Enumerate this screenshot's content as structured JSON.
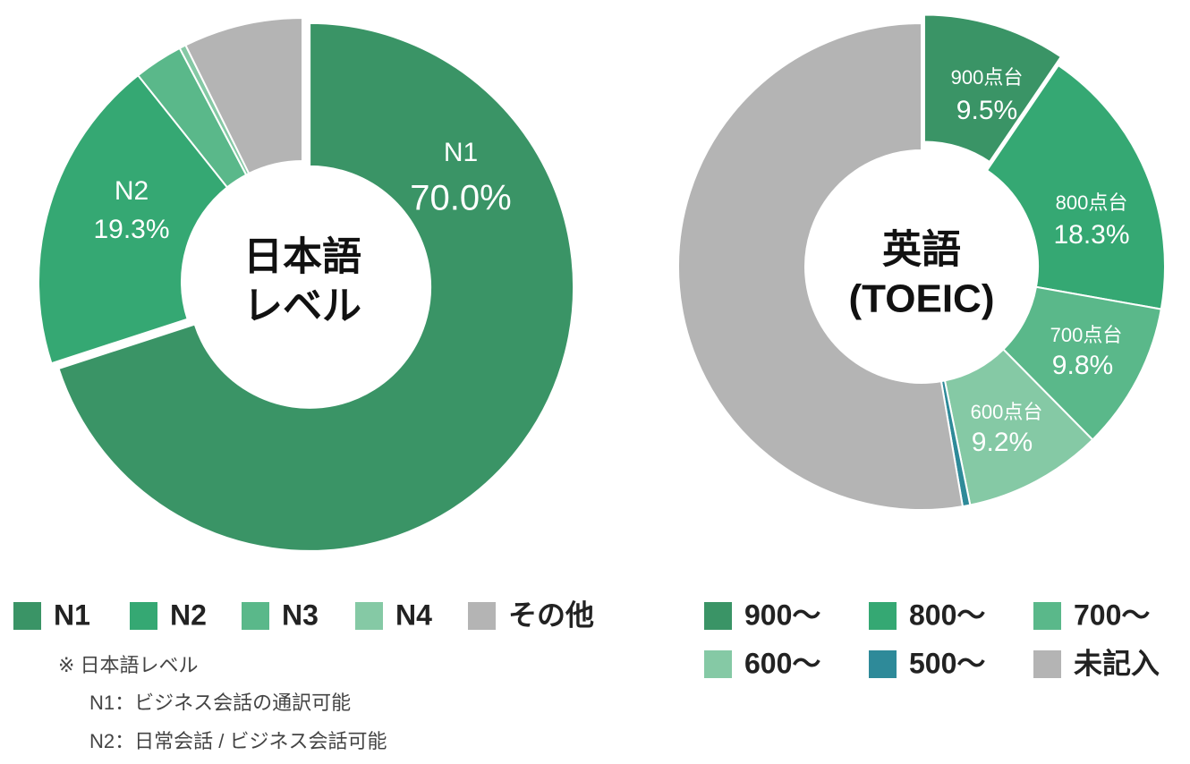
{
  "chart_data": [
    {
      "type": "donut",
      "center_label": [
        "日本語",
        "レベル"
      ],
      "categories": [
        "N1",
        "N2",
        "N3",
        "N4",
        "その他"
      ],
      "values": [
        70.0,
        19.3,
        3.0,
        0.4,
        7.3
      ],
      "value_labels": [
        "70.0%",
        "19.3%",
        null,
        null,
        null
      ],
      "slice_labels": [
        "N1",
        "N2",
        null,
        null,
        null
      ],
      "colors": [
        "#3a9466",
        "#35a873",
        "#5ab88a",
        "#85c9a5",
        "#b4b4b4"
      ]
    },
    {
      "type": "donut",
      "center_label": [
        "英語",
        "(TOEIC)"
      ],
      "categories": [
        "900～",
        "800～",
        "700～",
        "600～",
        "500～",
        "未記入"
      ],
      "values": [
        9.5,
        18.3,
        9.8,
        9.2,
        0.5,
        52.7
      ],
      "value_labels": [
        "9.5%",
        "18.3%",
        "9.8%",
        "9.2%",
        null,
        null
      ],
      "slice_labels": [
        "900点台",
        "800点台",
        "700点台",
        "600点台",
        null,
        null
      ],
      "colors": [
        "#3a9466",
        "#35a873",
        "#5ab88a",
        "#85c9a5",
        "#2e8a99",
        "#b4b4b4"
      ]
    }
  ],
  "notes": [
    "※ 日本語レベル",
    "N1：ビジネス会話の通訳可能",
    "N2：日常会話 / ビジネス会話可能"
  ]
}
